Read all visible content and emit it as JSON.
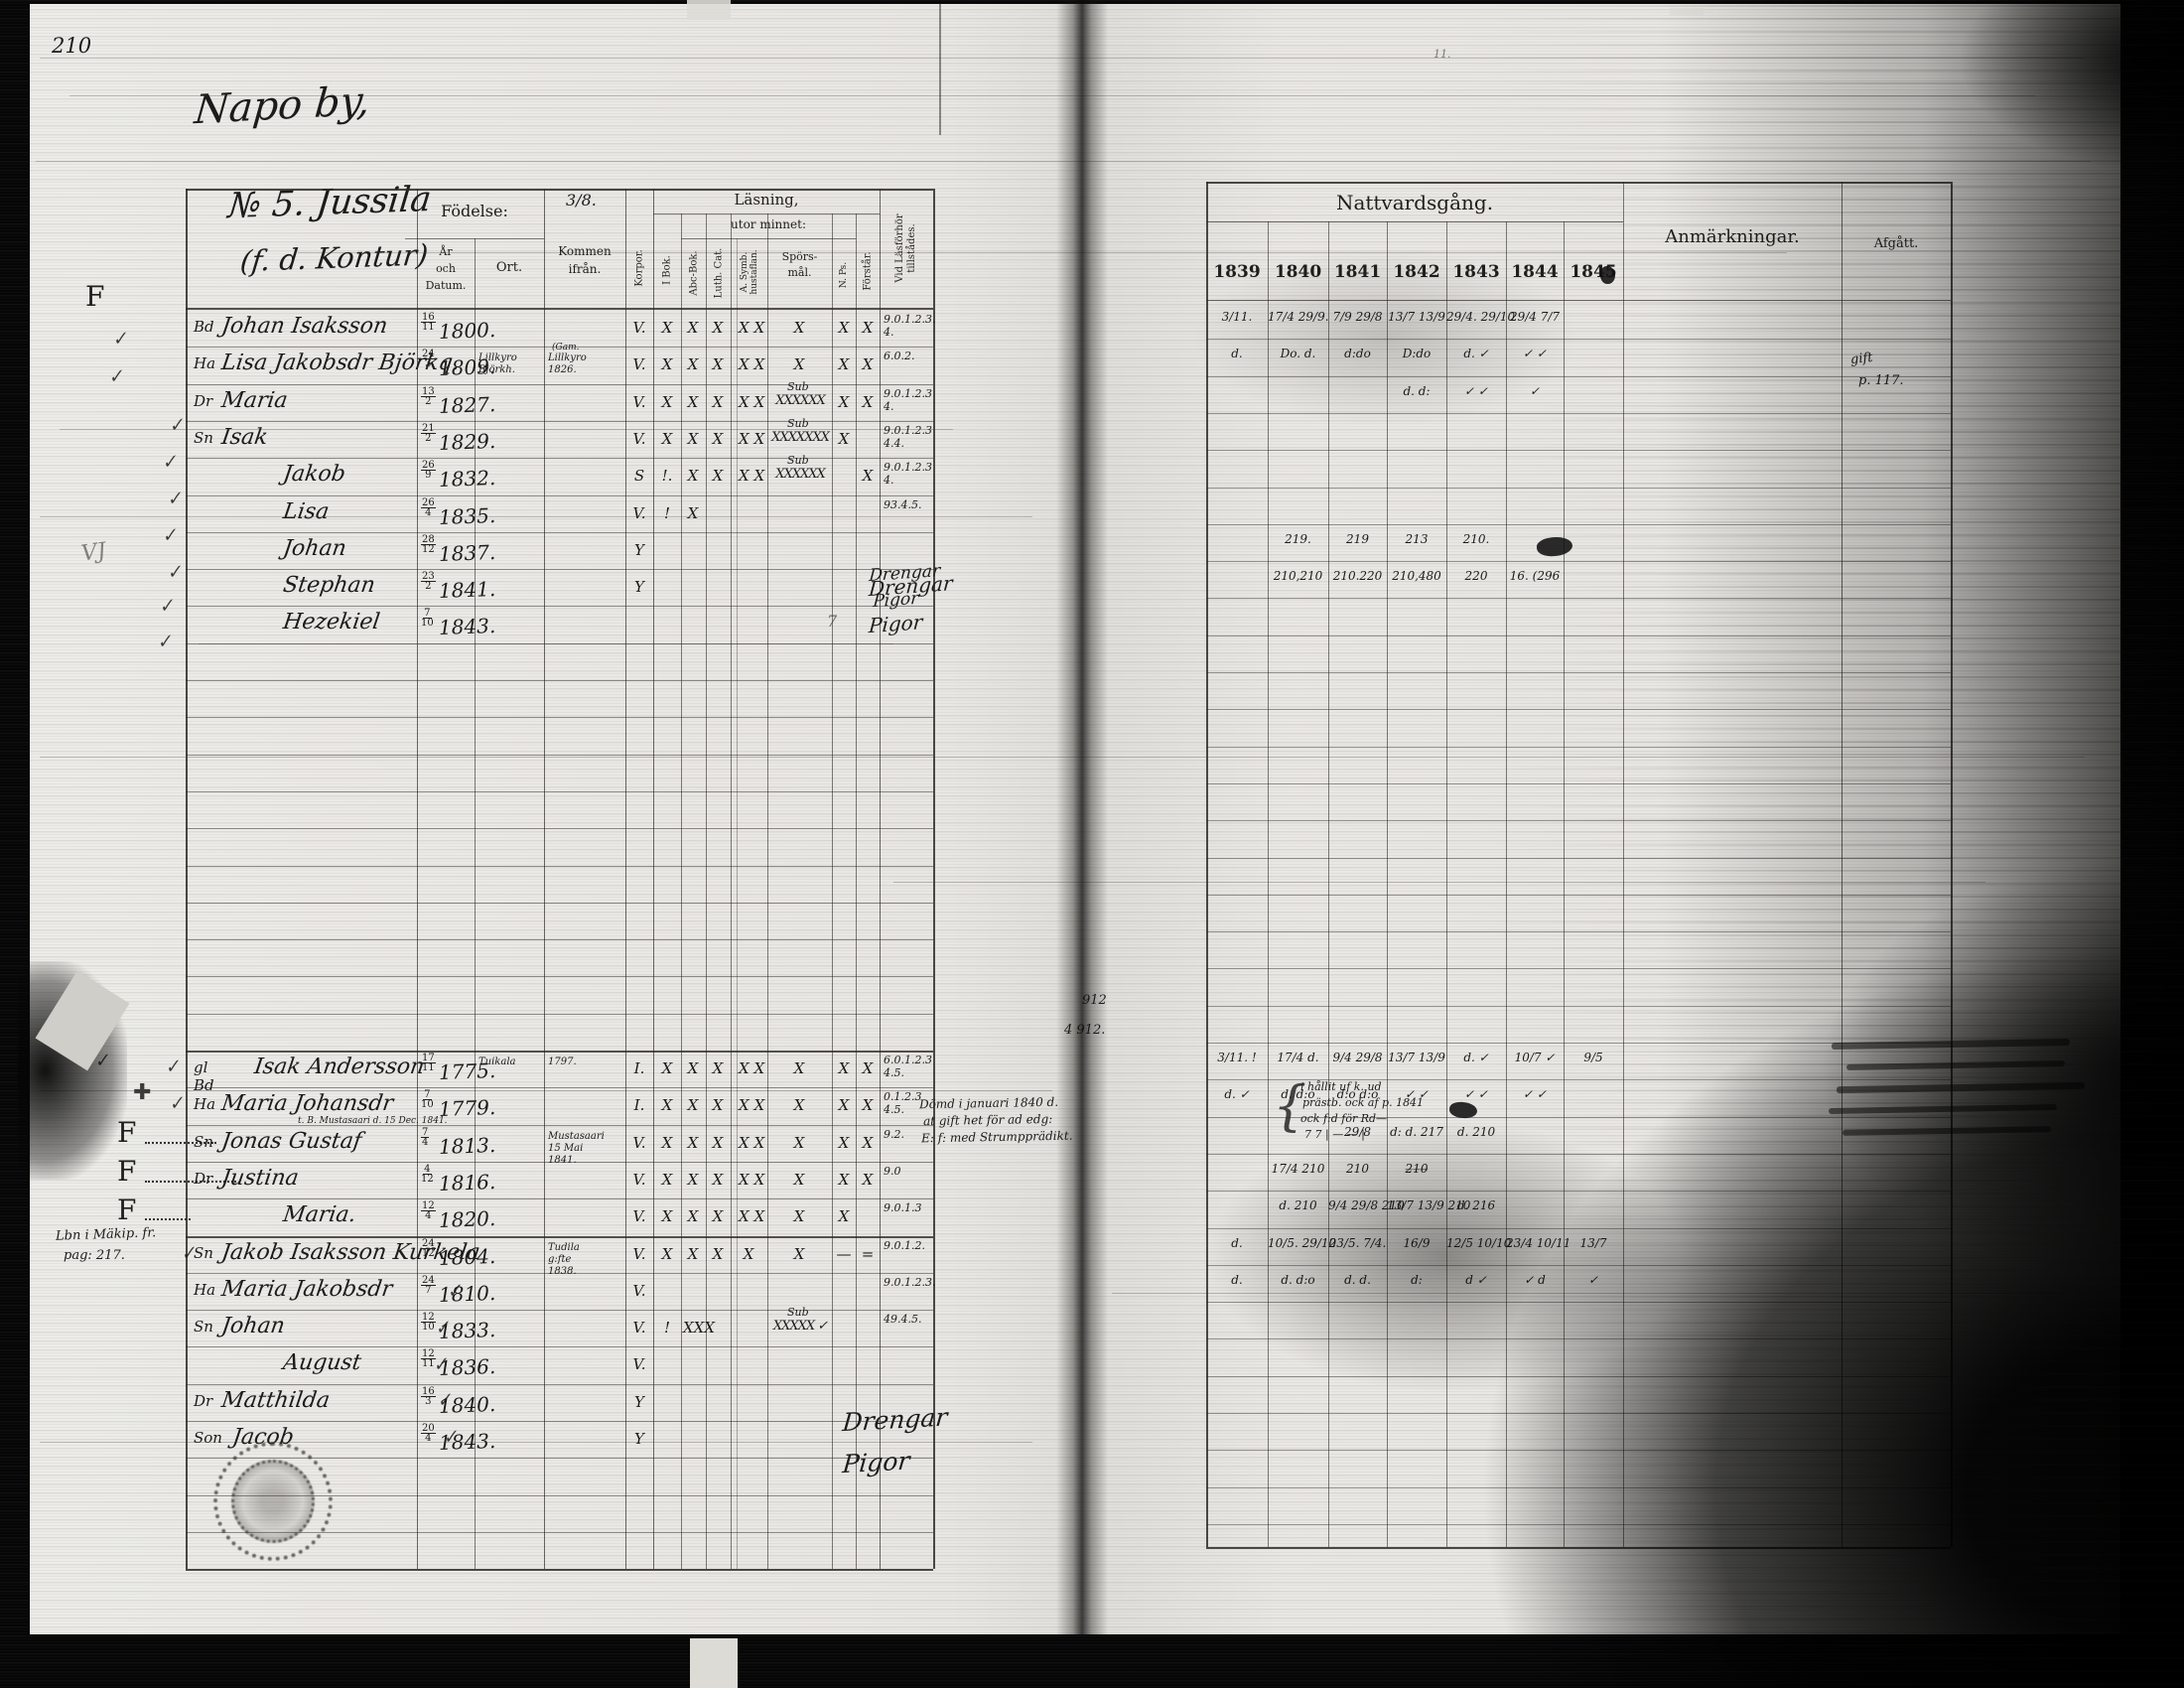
{
  "meta": {
    "page_number_left": "210",
    "page_number_right": "11."
  },
  "left_table": {
    "headers": {
      "title_script": "Napo by,",
      "no_line": "№ 5. Jussila",
      "no_frac": "3/8.",
      "sub_line": "(f. d. Kontur)",
      "fodelse": "Födelse:",
      "ar": "År",
      "och": "och",
      "datum": "Datum.",
      "ort": "Ort.",
      "kommen1": "Kommen",
      "kommen2": "ifrån.",
      "korpor": "Korpor.",
      "lasning": "Läsning,",
      "utor": "utor minnet:",
      "ibok": "I Bok.",
      "abc": "Abc-Bok.",
      "luth": "Luth. Cat.",
      "asymb": "A. Symb. hustaflan.",
      "spors1": "Spörs-",
      "spors2": "mål.",
      "nps": "N. Ps.",
      "forstar": "Förstår.",
      "vidlas": "Vid Läsförhör tillstådes."
    },
    "households": [
      [
        {
          "p": "Bd",
          "n": "Johan Isaksson",
          "d": "16/11",
          "y": "1800.",
          "marks": {
            "korpor": "V.",
            "ibok": "X",
            "abc": "X",
            "luth": "X",
            "asymb": "X X",
            "spors": "X",
            "nps": "X",
            "forstar": "X"
          },
          "vl": "9.0.1.2.3.\n4."
        },
        {
          "p": "Ha",
          "n": "Lisa Jakobsdr Björkq.",
          "d": "24/3",
          "y": "1809.",
          "small": "(Gam.",
          "ort": "Lillkyro\nBjörkh.",
          "kommen": "Lillkyro\n1826.",
          "marks": {
            "korpor": "V.",
            "ibok": "X",
            "abc": "X",
            "luth": "X",
            "asymb": "X X",
            "spors": "X",
            "nps": "X",
            "forstar": "X"
          },
          "vl": "6.0.2."
        },
        {
          "p": "Dr",
          "n": "Maria",
          "d": "13/2",
          "y": "1827.",
          "marks": {
            "korpor": "V.",
            "ibok": "X",
            "abc": "X",
            "luth": "X",
            "asymb": "X X",
            "spors": "XXXXXX",
            "nps": "X",
            "forstar": "X"
          },
          "sub": "Sub",
          "vl": "9.0.1.2.3\n4."
        },
        {
          "p": "Sn",
          "n": "Isak",
          "d": "21/2",
          "y": "1829.",
          "marks": {
            "korpor": "V.",
            "ibok": "X",
            "abc": "X",
            "luth": "X",
            "asymb": "X X",
            "spors": "XXXXXXX",
            "nps": "X"
          },
          "sub": "Sub",
          "vl": "9.0.1.2.3\n4.4."
        },
        {
          "n": "Jakob",
          "d": "26/9",
          "y": "1832.",
          "marks": {
            "korpor": "S",
            "ibok": "!.",
            "abc": "X",
            "luth": "X",
            "asymb": "X X",
            "spors": "XXXXXX",
            "forstar": "X"
          },
          "sub": "Sub",
          "vl": "9.0.1.2.3\n4."
        },
        {
          "n": "Lisa",
          "d": "26/4",
          "y": "1835.",
          "marks": {
            "korpor": "V.",
            "ibok": "!",
            "abc": "X"
          },
          "vl": "93.4.5."
        },
        {
          "n": "Johan",
          "d": "28/12",
          "y": "1837.",
          "marks": {
            "korpor": "Y"
          }
        },
        {
          "n": "Stephan",
          "d": "23/2",
          "y": "1841.",
          "marks": {
            "korpor": "Y"
          },
          "vl": "Drengar",
          "vls": true
        },
        {
          "n": "Hezekiel",
          "d": "7/10",
          "y": "1843.",
          "vl": "Pigor",
          "vls": true
        }
      ],
      [
        {
          "p": "gl Bd",
          "n": "Isak Andersson",
          "d": "17/11",
          "y": "1775.",
          "ort": "Tuikala",
          "kommen": "1797.",
          "marks": {
            "korpor": "I.",
            "ibok": "X",
            "abc": "X",
            "luth": "X",
            "asymb": "X X",
            "spors": "X",
            "nps": "X",
            "forstar": "X"
          },
          "vl": "6.0.1.2.3\n4.5."
        },
        {
          "p": "Ha",
          "n": "Maria Johansdr",
          "d": "7/10",
          "y": "1779.",
          "marks": {
            "korpor": "I.",
            "ibok": "X",
            "abc": "X",
            "luth": "X",
            "asymb": "X X",
            "spors": "X",
            "nps": "X",
            "forstar": "X"
          },
          "vl": "0.1.2.3\n4.5."
        },
        {
          "p": "Sn",
          "n": "Jonas Gustaf",
          "d": "7/4",
          "y": "1813.",
          "small": "t. B. Mustasaari d. 15 Dec. 1841.",
          "kommen": "Mustasaari\n15 Mai 1841.",
          "marks": {
            "korpor": "V.",
            "ibok": "X",
            "abc": "X",
            "luth": "X",
            "asymb": "X X",
            "spors": "X",
            "nps": "X",
            "forstar": "X"
          },
          "vl": "9.2."
        },
        {
          "p": "Dr",
          "n": "Justina",
          "d": "4/12",
          "y": "1816.",
          "marks": {
            "korpor": "V.",
            "ibok": "X",
            "abc": "X",
            "luth": "X",
            "asymb": "X X",
            "spors": "X",
            "nps": "X",
            "forstar": "X"
          },
          "vl": "9.0"
        },
        {
          "n": "Maria.",
          "d": "12/4",
          "y": "1820.",
          "marks": {
            "korpor": "V.",
            "ibok": "X",
            "abc": "X",
            "luth": "X",
            "asymb": "X X",
            "spors": "X",
            "nps": "X"
          },
          "vl": "9.0.1.3"
        }
      ],
      [
        {
          "p": "Sn",
          "n": "Jakob Isaksson Kurkela",
          "d": "24/12",
          "y": "1804.",
          "kommen": "Tudila\ng:fte 1838.",
          "marks": {
            "korpor": "V.",
            "ibok": "X",
            "abc": "X",
            "luth": "X",
            "asymb": "X",
            "spors": "X",
            "nps": "—",
            "forstar": "="
          },
          "vl": "9.0.1.2."
        },
        {
          "p": "Ha",
          "n": "Maria Jakobsdr",
          "d": "24/7",
          "y": "1810.",
          "marks": {
            "korpor": "V."
          },
          "vl": "9.0.1.2.3."
        },
        {
          "p": "Sn",
          "n": "Johan",
          "d": "12/10",
          "y": "1833.",
          "marks": {
            "korpor": "V.",
            "ibok": "!",
            "abc": "XXX",
            "spors": "XXXXX ✓"
          },
          "sub": "Sub",
          "vl": "49.4.5."
        },
        {
          "n": "August",
          "d": "12/11",
          "y": "1836.",
          "marks": {
            "korpor": "V."
          }
        },
        {
          "p": "Dr",
          "n": "Matthilda",
          "d": "16/3",
          "y": "1840.",
          "marks": {
            "korpor": "Y"
          }
        },
        {
          "p": "Son",
          "n": "Jacob",
          "d": "20/4",
          "y": "1843.",
          "marks": {
            "korpor": "Y"
          }
        }
      ]
    ]
  },
  "right_table": {
    "title": "Nattvardsgång.",
    "years": [
      "1839",
      "1840",
      "1841",
      "1842",
      "1843",
      "1844",
      "1845"
    ],
    "anm": "Anmärkningar.",
    "afgatt": "Afgått.",
    "households": [
      [
        {
          "i": 0,
          "c": [
            "3/11.",
            "17/4 29/9.",
            "7/9 29/8",
            "13/7 13/9",
            "29/4. 29/10",
            "29/4 7/7",
            ""
          ]
        },
        {
          "i": 1,
          "c": [
            "d.",
            "Do. d.",
            "d:do",
            "D:do",
            "d. ✓",
            "✓ ✓",
            ""
          ]
        },
        {
          "i": 2,
          "c": [
            "",
            "",
            "",
            "d. d:",
            "✓ ✓",
            "✓",
            ""
          ]
        },
        {
          "i": 6,
          "c": [
            "",
            "219.",
            "219",
            "213",
            "210.",
            "",
            ""
          ]
        },
        {
          "i": 7,
          "c": [
            "",
            "210,210",
            "210.220",
            "210,480",
            "220",
            "16. (296",
            ""
          ]
        }
      ],
      [
        {
          "i": 0,
          "c": [
            "3/11. !",
            "17/4 d.",
            "9/4 29/8",
            "13/7 13/9",
            "d. ✓",
            "10/7 ✓",
            "9/5"
          ]
        },
        {
          "i": 1,
          "c": [
            "d. ✓",
            "d. d:o",
            "d:o d:o",
            "✓ ✓",
            "✓ ✓",
            "✓ ✓",
            ""
          ]
        },
        {
          "i": 2,
          "c": [
            "",
            "",
            "29/8",
            "d: d. 217",
            "d. 210",
            "",
            ""
          ]
        },
        {
          "i": 3,
          "c": [
            "",
            "17/4 210",
            "210",
            "2̶1̶0̶",
            "",
            "",
            ""
          ]
        },
        {
          "i": 4,
          "c": [
            "",
            "d. 210",
            "9/4 29/8 210",
            "13/7 13/9 210",
            "d. 216",
            "",
            ""
          ]
        }
      ],
      [
        {
          "i": 0,
          "c": [
            "d.",
            "10/5. 29/10",
            "23/5. 7/4.",
            "16/9",
            "12/5 10/10",
            "23/4 10/11",
            "13/7"
          ]
        },
        {
          "i": 1,
          "c": [
            "d.",
            "d. d:o",
            "d. d.",
            "d:",
            "d ✓",
            "✓ d",
            "✓"
          ]
        }
      ]
    ]
  },
  "annotations": {
    "vj": "VJ",
    "seven": "7",
    "f_main": "F",
    "f_rows": [
      "F",
      "F",
      "F"
    ],
    "cross": "✚",
    "margin_note1": "Lbn i Mäkip. fr.",
    "margin_note2": "pag: 217.",
    "p912": "912",
    "p912b": "4 912.",
    "anm_left": [
      "Dömd i januari 1840 d.",
      "at gift het för ad edg:",
      "E: f: med Strumpprädikt."
    ],
    "brace": "{",
    "anm_right": [
      "i hållit uf k. ud",
      "prästb. ock af p. 1841",
      "ock f:d för Rd—",
      "7 7 | — — |"
    ],
    "afgatt_entry1": "gift",
    "afgatt_entry2": "p. 117.",
    "drengar": "Drengar",
    "pigor": "Pigor"
  },
  "symbols": {
    "check": "✓"
  }
}
